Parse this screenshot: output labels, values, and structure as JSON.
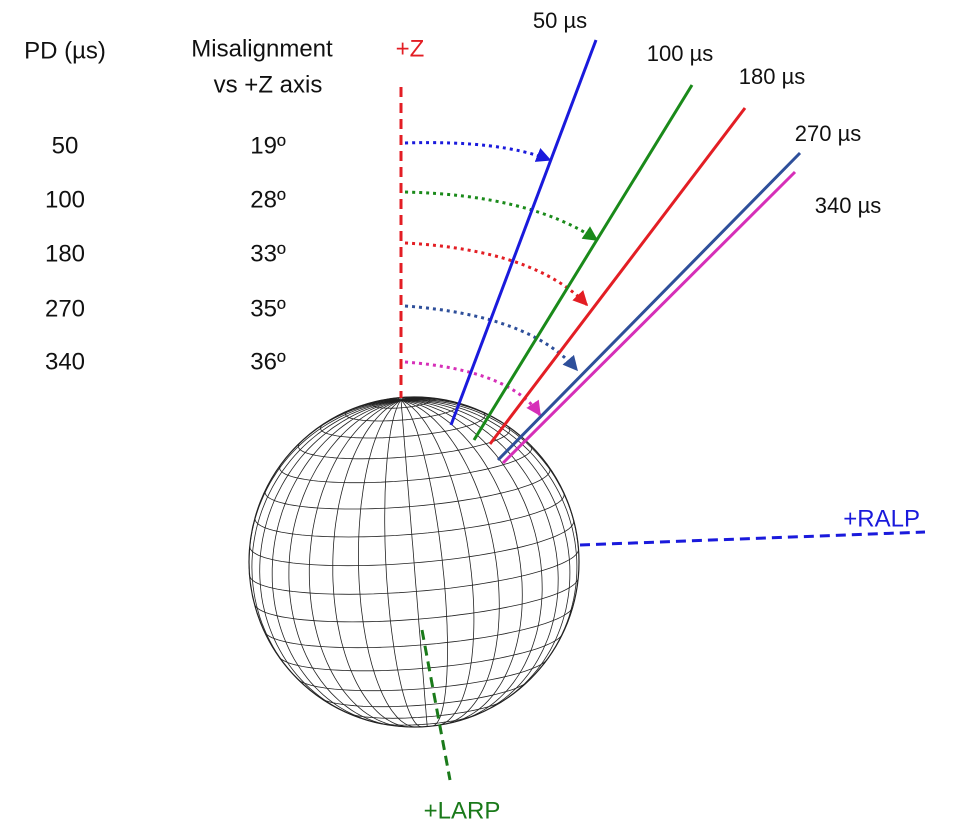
{
  "table": {
    "header": [
      "PD (µs)",
      "Misalignment",
      "vs +Z axis"
    ],
    "rows": [
      [
        "50",
        "19º"
      ],
      [
        "100",
        "28º"
      ],
      [
        "180",
        "33º"
      ],
      [
        "270",
        "35º"
      ],
      [
        "340",
        "36º"
      ]
    ]
  },
  "axes": {
    "z": "+Z",
    "ralp": "+RALP",
    "larp": "+LARP"
  },
  "vectors": [
    "50 µs",
    "100 µs",
    "180 µs",
    "270 µs",
    "340 µs"
  ]
}
